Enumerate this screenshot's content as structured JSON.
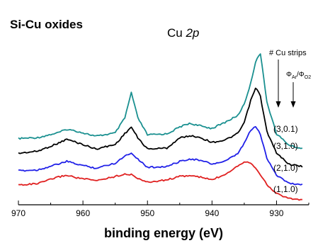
{
  "chart_data": {
    "type": "line",
    "title": "Si-Cu oxides",
    "element_label_main": "Cu ",
    "element_label_orbital": "2p",
    "xlabel": "binding energy (eV)",
    "ylabel": "",
    "xlim": [
      970,
      925
    ],
    "xticks": [
      970,
      960,
      950,
      940,
      930
    ],
    "legend_header_1": "# Cu strips",
    "legend_header_2_base": "Φ",
    "legend_header_2_sub1": "Ar",
    "legend_header_2_mid": "/Φ",
    "legend_header_2_sub2": "O2",
    "series": [
      {
        "label": "(3,0.1)",
        "color": "#1a9090",
        "x": [
          970,
          967,
          964,
          962.5,
          961,
          958,
          955,
          953.5,
          952.5,
          951.5,
          950,
          947,
          945,
          943.5,
          942,
          940,
          938,
          936,
          935,
          934,
          933.2,
          932.5,
          931.5,
          930,
          928,
          926
        ],
        "y": [
          0.6,
          0.62,
          0.72,
          0.8,
          0.76,
          0.65,
          0.72,
          1.05,
          1.6,
          1.05,
          0.68,
          0.7,
          0.85,
          0.93,
          0.88,
          0.82,
          0.95,
          1.1,
          1.35,
          1.8,
          2.3,
          2.45,
          1.4,
          0.7,
          0.45,
          0.38
        ]
      },
      {
        "label": "(3,1.0)",
        "color": "#000000",
        "x": [
          970,
          967,
          964,
          962.5,
          961,
          958,
          955,
          953.5,
          952.5,
          951.5,
          950,
          947,
          945,
          943.5,
          942,
          940,
          938,
          936,
          935,
          934,
          933.2,
          932.5,
          931.5,
          930,
          928,
          926
        ],
        "y": [
          0.6,
          0.65,
          0.82,
          0.92,
          0.85,
          0.7,
          0.8,
          1.05,
          1.2,
          0.95,
          0.7,
          0.72,
          0.95,
          1.0,
          0.97,
          0.85,
          0.9,
          1.05,
          1.3,
          1.8,
          2.1,
          1.9,
          1.1,
          0.6,
          0.35,
          0.3
        ]
      },
      {
        "label": "(2,1.0)",
        "color": "#2020e8",
        "x": [
          970,
          967,
          964,
          962.5,
          961,
          958,
          955,
          953.5,
          952.5,
          951.5,
          950,
          947,
          945,
          943.5,
          942,
          940,
          938,
          936,
          935,
          934,
          933.2,
          932.5,
          931.5,
          930,
          928,
          926
        ],
        "y": [
          0.6,
          0.62,
          0.75,
          0.82,
          0.76,
          0.66,
          0.78,
          0.95,
          1.02,
          0.88,
          0.68,
          0.7,
          0.82,
          0.88,
          0.85,
          0.76,
          0.82,
          1.0,
          1.25,
          1.55,
          1.65,
          1.45,
          0.9,
          0.5,
          0.3,
          0.28
        ]
      },
      {
        "label": "(1,1.0)",
        "color": "#e02020",
        "x": [
          970,
          967,
          964,
          962.5,
          961,
          958,
          955,
          953.5,
          952.5,
          951.5,
          950,
          947,
          945,
          943.5,
          942,
          940,
          938,
          936,
          935,
          934,
          933.2,
          932.5,
          931.5,
          930,
          928,
          926
        ],
        "y": [
          0.6,
          0.63,
          0.78,
          0.83,
          0.77,
          0.7,
          0.8,
          0.86,
          0.84,
          0.76,
          0.66,
          0.72,
          0.8,
          0.82,
          0.79,
          0.72,
          0.85,
          1.05,
          1.15,
          1.12,
          1.0,
          0.85,
          0.6,
          0.4,
          0.28,
          0.25
        ]
      }
    ]
  }
}
